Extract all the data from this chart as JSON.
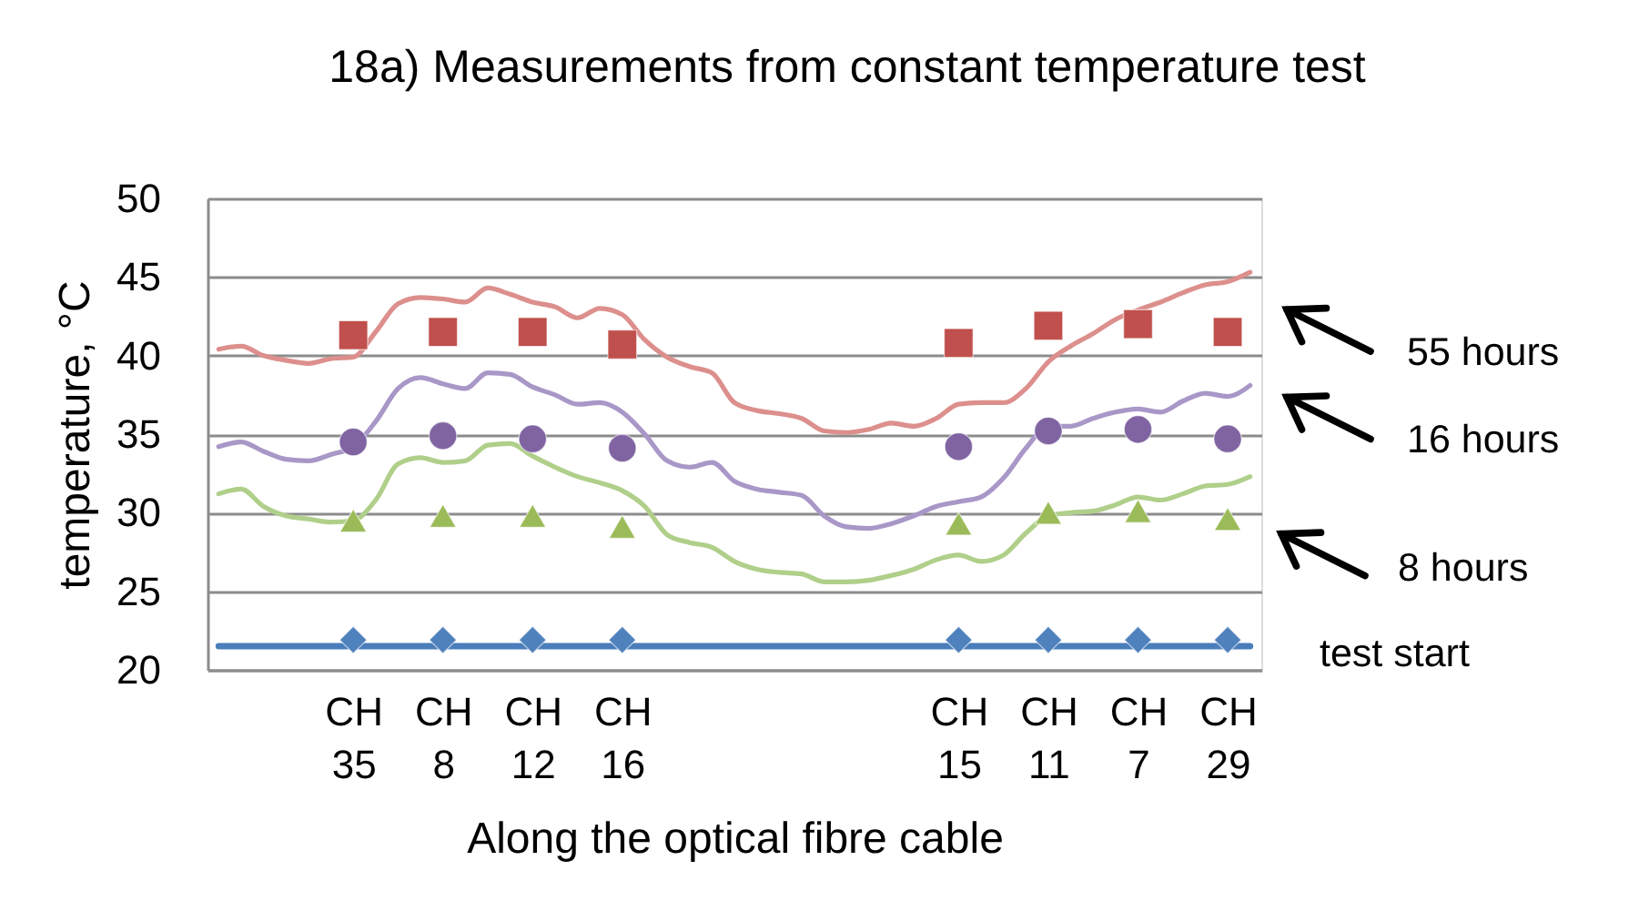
{
  "chart_data": {
    "type": "line",
    "title": "18a) Measurements from constant temperature test",
    "xlabel": "Along the optical fibre cable",
    "ylabel": "temperature, °C",
    "categories": [
      null,
      null,
      null,
      null,
      null,
      null,
      "CH 35",
      null,
      null,
      null,
      "CH 8",
      null,
      null,
      null,
      "CH 12",
      null,
      null,
      null,
      "CH 16",
      null,
      null,
      null,
      null,
      null,
      null,
      null,
      null,
      null,
      null,
      null,
      null,
      null,
      null,
      "CH 15",
      null,
      null,
      null,
      "CH 11",
      null,
      null,
      null,
      "CH 7",
      null,
      null,
      null,
      "CH 29",
      null
    ],
    "ylim": [
      20,
      50
    ],
    "yticks": [
      20,
      25,
      30,
      35,
      40,
      45,
      50
    ],
    "grid": "y",
    "series": [
      {
        "name": "55 hours",
        "color": "#dc8f8c",
        "values": [
          40.4,
          40.6,
          40.0,
          39.7,
          39.5,
          39.8,
          39.9,
          41.5,
          43.3,
          43.7,
          43.6,
          43.4,
          44.3,
          43.9,
          43.4,
          43.1,
          42.4,
          43.0,
          42.6,
          41.0,
          39.9,
          39.3,
          38.9,
          37.0,
          36.5,
          36.3,
          36.0,
          35.2,
          35.1,
          35.3,
          35.7,
          35.5,
          36.0,
          36.9,
          37.0,
          37.0,
          37.9,
          39.6,
          40.6,
          41.4,
          42.3,
          42.9,
          43.4,
          44.0,
          44.5,
          44.7,
          45.3
        ]
      },
      {
        "name": "16 hours",
        "color": "#a897c7",
        "values": [
          34.2,
          34.5,
          33.9,
          33.4,
          33.3,
          33.7,
          34.2,
          35.8,
          37.9,
          38.6,
          38.2,
          37.9,
          38.9,
          38.8,
          38.0,
          37.5,
          36.9,
          37.0,
          36.4,
          35.0,
          33.3,
          32.9,
          33.2,
          32.0,
          31.5,
          31.3,
          31.1,
          29.8,
          29.1,
          29.0,
          29.3,
          29.8,
          30.4,
          30.7,
          31.0,
          32.2,
          34.1,
          35.5,
          35.5,
          36.0,
          36.4,
          36.6,
          36.4,
          37.1,
          37.6,
          37.4,
          38.1
        ]
      },
      {
        "name": "8 hours",
        "color": "#b0cf8a",
        "values": [
          31.2,
          31.5,
          30.4,
          29.8,
          29.6,
          29.4,
          29.5,
          30.8,
          33.1,
          33.5,
          33.2,
          33.3,
          34.3,
          34.4,
          33.6,
          32.9,
          32.3,
          31.9,
          31.4,
          30.4,
          28.6,
          28.1,
          27.8,
          26.9,
          26.4,
          26.2,
          26.1,
          25.6,
          25.6,
          25.7,
          26.0,
          26.4,
          27.0,
          27.3,
          26.9,
          27.3,
          28.7,
          29.8,
          30.0,
          30.1,
          30.5,
          31.0,
          30.8,
          31.2,
          31.7,
          31.8,
          32.3
        ]
      },
      {
        "name": "test start",
        "color": "#4a7ebb",
        "values": [
          21.5,
          21.5,
          21.5,
          21.5,
          21.5,
          21.5,
          21.5,
          21.5,
          21.5,
          21.5,
          21.5,
          21.5,
          21.5,
          21.5,
          21.5,
          21.5,
          21.5,
          21.5,
          21.5,
          21.5,
          21.5,
          21.5,
          21.5,
          21.5,
          21.5,
          21.5,
          21.5,
          21.5,
          21.5,
          21.5,
          21.5,
          21.5,
          21.5,
          21.5,
          21.5,
          21.5,
          21.5,
          21.5,
          21.5,
          21.5,
          21.5,
          21.5,
          21.5,
          21.5,
          21.5,
          21.5,
          21.5
        ]
      },
      {
        "type": "scatter",
        "marker": "square",
        "color": "#c0504d",
        "values": [
          null,
          null,
          null,
          null,
          null,
          null,
          41.3,
          null,
          null,
          null,
          41.5,
          null,
          null,
          null,
          41.5,
          null,
          null,
          null,
          40.7,
          null,
          null,
          null,
          null,
          null,
          null,
          null,
          null,
          null,
          null,
          null,
          null,
          null,
          null,
          40.8,
          null,
          null,
          null,
          41.9,
          null,
          null,
          null,
          42.0,
          null,
          null,
          null,
          41.5,
          null
        ]
      },
      {
        "type": "scatter",
        "marker": "circle",
        "color": "#8064a2",
        "values": [
          null,
          null,
          null,
          null,
          null,
          null,
          34.5,
          null,
          null,
          null,
          34.9,
          null,
          null,
          null,
          34.7,
          null,
          null,
          null,
          34.1,
          null,
          null,
          null,
          null,
          null,
          null,
          null,
          null,
          null,
          null,
          null,
          null,
          null,
          null,
          34.2,
          null,
          null,
          null,
          35.2,
          null,
          null,
          null,
          35.3,
          null,
          null,
          null,
          34.7,
          null
        ]
      },
      {
        "type": "scatter",
        "marker": "triangle",
        "color": "#9bbb59",
        "values": [
          null,
          null,
          null,
          null,
          null,
          null,
          29.5,
          null,
          null,
          null,
          29.8,
          null,
          null,
          null,
          29.8,
          null,
          null,
          null,
          29.1,
          null,
          null,
          null,
          null,
          null,
          null,
          null,
          null,
          null,
          null,
          null,
          null,
          null,
          null,
          29.3,
          null,
          null,
          null,
          30.0,
          null,
          null,
          null,
          30.1,
          null,
          null,
          null,
          29.6,
          null
        ]
      },
      {
        "type": "scatter",
        "marker": "diamond",
        "color": "#4f81bd",
        "values": [
          null,
          null,
          null,
          null,
          null,
          null,
          21.9,
          null,
          null,
          null,
          21.9,
          null,
          null,
          null,
          21.9,
          null,
          null,
          null,
          21.9,
          null,
          null,
          null,
          null,
          null,
          null,
          null,
          null,
          null,
          null,
          null,
          null,
          null,
          null,
          21.9,
          null,
          null,
          null,
          21.9,
          null,
          null,
          null,
          21.9,
          null,
          null,
          null,
          21.9,
          null
        ]
      }
    ]
  }
}
